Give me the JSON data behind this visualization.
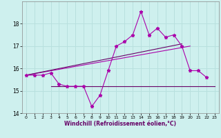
{
  "xlabel": "Windchill (Refroidissement éolien,°C)",
  "bg_color": "#cef0ee",
  "grid_color": "#b8e0de",
  "line_color": "#aa00aa",
  "line_color2": "#660066",
  "xmin": -0.5,
  "xmax": 23.5,
  "ymin": 14.0,
  "ymax": 19.0,
  "yticks": [
    14,
    15,
    16,
    17,
    18
  ],
  "xticks": [
    0,
    1,
    2,
    3,
    4,
    5,
    6,
    7,
    8,
    9,
    10,
    11,
    12,
    13,
    14,
    15,
    16,
    17,
    18,
    19,
    20,
    21,
    22,
    23
  ],
  "series1_x": [
    0,
    1,
    2,
    3,
    4,
    5,
    6,
    7,
    8,
    9,
    10,
    11,
    12,
    13,
    14,
    15,
    16,
    17,
    18,
    19,
    20,
    21,
    22
  ],
  "series1_y": [
    15.7,
    15.7,
    15.7,
    15.8,
    15.3,
    15.2,
    15.2,
    15.2,
    14.3,
    14.8,
    15.9,
    17.0,
    17.2,
    17.5,
    18.55,
    17.5,
    17.8,
    17.4,
    17.5,
    17.0,
    15.9,
    15.9,
    15.6
  ],
  "series2_x": [
    0,
    20
  ],
  "series2_y": [
    15.7,
    17.0
  ],
  "series3_x": [
    0,
    19
  ],
  "series3_y": [
    15.7,
    17.1
  ],
  "series4_x": [
    3,
    23
  ],
  "series4_y": [
    15.2,
    15.2
  ]
}
